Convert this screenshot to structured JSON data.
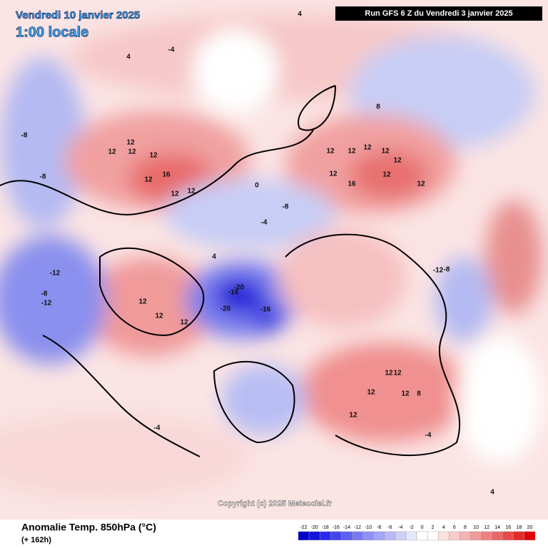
{
  "header": {
    "valid_date": "Vendredi 10 janvier 2025",
    "local_time": "1:00 locale",
    "run": "Run GFS 6 Z du Vendredi 3 janvier 2025"
  },
  "footer": {
    "title": "Anomalie Temp. 850hPa (°C)",
    "lead": "(+ 162h)",
    "copyright": "Copyright (c) 2025 Meteociel.fr"
  },
  "legend": {
    "ticks": [
      -22,
      -20,
      -18,
      -16,
      -14,
      -12,
      -10,
      -8,
      -6,
      -4,
      -2,
      0,
      2,
      4,
      6,
      8,
      10,
      12,
      14,
      16,
      18,
      20
    ],
    "colors": [
      "#0000c8",
      "#1414dc",
      "#2a2aec",
      "#4545f0",
      "#5f5ff2",
      "#7878f4",
      "#9090f5",
      "#a6a6f6",
      "#babaf8",
      "#cfcff9",
      "#e6e6fc",
      "#ffffff",
      "#ffffff",
      "#fbe0e0",
      "#f8cccc",
      "#f5b3b3",
      "#f29a9a",
      "#ef8080",
      "#ec6666",
      "#e84a4a",
      "#e42a2a",
      "#e00000"
    ]
  },
  "map_labels": [
    12,
    12,
    12,
    16,
    12,
    12,
    12,
    12,
    12,
    12,
    12,
    12,
    12,
    16,
    12,
    12,
    12,
    12,
    12,
    12,
    -20,
    -16,
    -20,
    -16,
    -8,
    -12,
    -12,
    12,
    12,
    12,
    12,
    12,
    8,
    -8,
    -8,
    -8,
    -4,
    -12,
    -8,
    4,
    4,
    4,
    -4,
    -4,
    0,
    4,
    -4,
    8
  ]
}
